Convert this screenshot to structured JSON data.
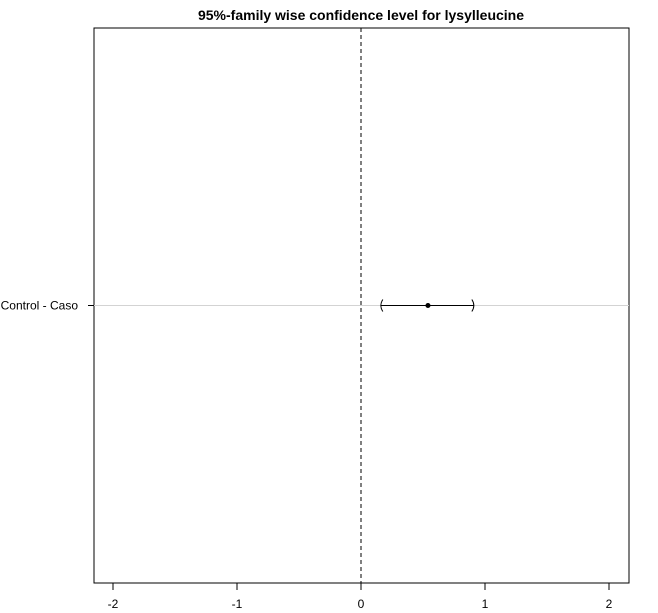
{
  "chart_data": {
    "type": "errorbar",
    "title": "95%-family wise confidence level for lysylleucine",
    "xlabel": "",
    "ylabel": "",
    "xlim": [
      -2,
      2
    ],
    "xticks": [
      -2,
      -1,
      0,
      1,
      2
    ],
    "xtick_labels": [
      "-2",
      "-1",
      "0",
      "1",
      "2"
    ],
    "reference_line_x": 0,
    "grid": false,
    "comparisons": [
      {
        "label": "Control - Caso",
        "estimate": 0.54,
        "lower": 0.16,
        "upper": 0.91
      }
    ]
  }
}
